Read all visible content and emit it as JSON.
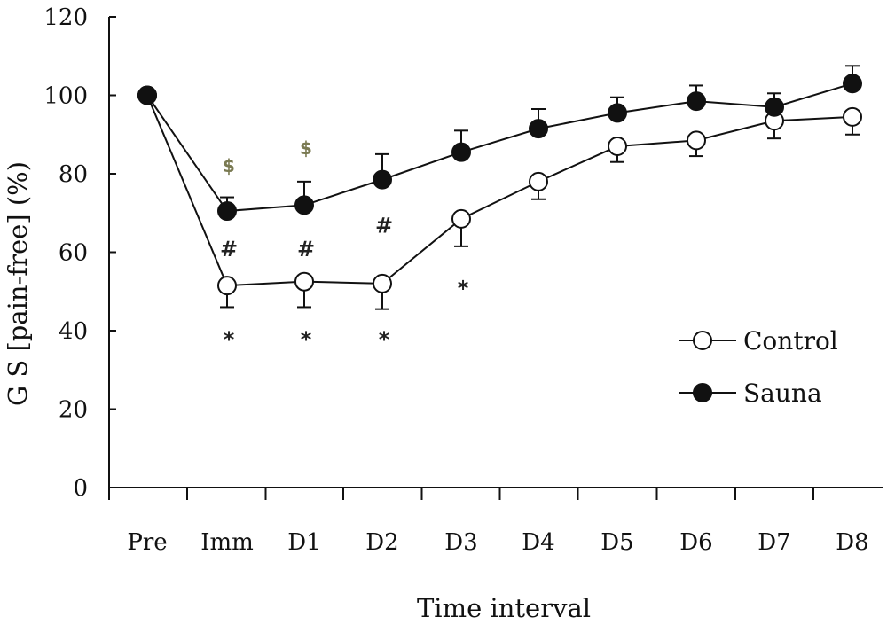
{
  "chart_data": {
    "type": "line",
    "title": "",
    "xlabel": "Time interval",
    "ylabel": "G S [pain-free] (%)",
    "categories": [
      "Pre",
      "Imm",
      "D1",
      "D2",
      "D3",
      "D4",
      "D5",
      "D6",
      "D7",
      "D8"
    ],
    "ylim": [
      0,
      120
    ],
    "yticks": [
      0,
      20,
      40,
      60,
      80,
      100,
      120
    ],
    "grid": false,
    "legend_position": "right",
    "series": [
      {
        "name": "Control",
        "marker": "open-circle",
        "values": [
          100,
          51.5,
          52.5,
          52,
          68.5,
          78,
          87,
          88.5,
          93.5,
          94.5
        ],
        "error": [
          0,
          5.5,
          6.5,
          6.5,
          7,
          4.5,
          4,
          4,
          4.5,
          4.5
        ]
      },
      {
        "name": "Sauna",
        "marker": "filled-circle",
        "values": [
          100,
          70.5,
          72,
          78.5,
          85.5,
          91.5,
          95.5,
          98.5,
          97,
          103
        ],
        "error": [
          0,
          3.5,
          6,
          6.5,
          5.5,
          5,
          4,
          4,
          3.5,
          4.5
        ]
      }
    ],
    "annotations": [
      {
        "text": "$",
        "category": "Imm",
        "y": 82.5
      },
      {
        "text": "$",
        "category": "D1",
        "y": 87
      },
      {
        "text": "#",
        "category": "Imm",
        "y": 61
      },
      {
        "text": "#",
        "category": "D1",
        "y": 61
      },
      {
        "text": "#",
        "category": "D2",
        "y": 67
      },
      {
        "text": "*",
        "category": "Imm",
        "y": 38
      },
      {
        "text": "*",
        "category": "D1",
        "y": 38
      },
      {
        "text": "*",
        "category": "D2",
        "y": 38
      },
      {
        "text": "*",
        "category": "D3",
        "y": 51
      }
    ]
  }
}
